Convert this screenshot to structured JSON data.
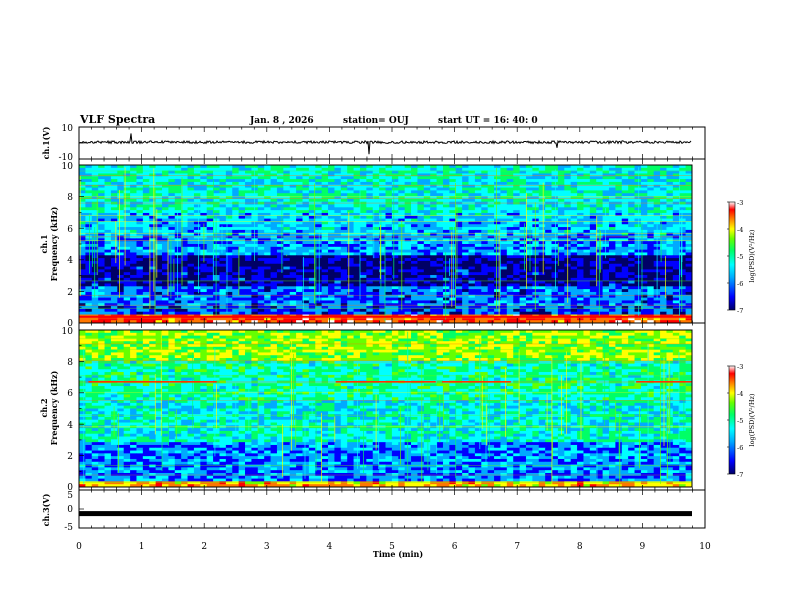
{
  "header": {
    "title": "VLF Spectra",
    "date": "Jan. 8 , 2026",
    "station": "station= OUJ",
    "start_ut": "start UT =  16: 40: 0"
  },
  "colors": {
    "scale": [
      "#000066",
      "#0000ff",
      "#00aaff",
      "#00ffff",
      "#00ff66",
      "#66ff00",
      "#ffff00",
      "#ff7700",
      "#ff0000",
      "#ffffff"
    ]
  },
  "chart_data": [
    {
      "type": "line",
      "name": "ch1-waveform",
      "ylabel": "ch.1(V)",
      "ylim": [
        -10,
        10
      ],
      "y_tick_labels": [
        "10",
        "-10"
      ],
      "baseline": 0.5
    },
    {
      "type": "heatmap",
      "name": "ch1-spectrogram",
      "ylabel_line1": "ch.1",
      "ylabel_line2": "Frequency (kHz)",
      "xlim": [
        0,
        10
      ],
      "ylim": [
        0,
        10
      ],
      "y_tick_labels": [
        "0",
        "2",
        "4",
        "6",
        "8",
        "10"
      ],
      "colorbar": {
        "label": "log(PSD)(V²/Hz)",
        "range": [
          -7,
          -3
        ],
        "tick_labels": [
          "-3",
          "-4",
          "-5",
          "-6",
          "-7"
        ]
      }
    },
    {
      "type": "heatmap",
      "name": "ch2-spectrogram",
      "ylabel_line1": "ch.2",
      "ylabel_line2": "Frequency (kHz)",
      "xlim": [
        0,
        10
      ],
      "ylim": [
        0,
        10
      ],
      "y_tick_labels": [
        "0",
        "2",
        "4",
        "6",
        "8",
        "10"
      ],
      "colorbar": {
        "label": "log(PSD)(V²/Hz)",
        "range": [
          -7,
          -3
        ],
        "tick_labels": [
          "-3",
          "-4",
          "-5",
          "-6",
          "-7"
        ]
      }
    },
    {
      "type": "line",
      "name": "ch3-waveform",
      "ylabel": "ch.3(V)",
      "ylim": [
        -5,
        5
      ],
      "y_tick_labels": [
        "5",
        "0",
        "-5"
      ],
      "baseline": -1.2
    }
  ],
  "x_axis": {
    "label": "Time (min)",
    "tick_labels": [
      "0",
      "1",
      "2",
      "3",
      "4",
      "5",
      "6",
      "7",
      "8",
      "9",
      "10"
    ]
  }
}
